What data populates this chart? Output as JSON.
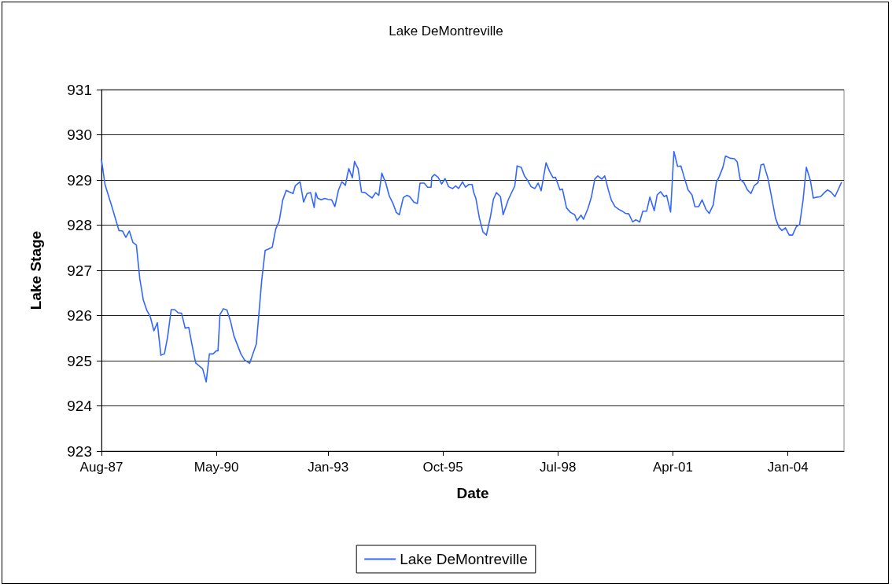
{
  "chart_data": {
    "type": "line",
    "title": "Lake DeMontreville",
    "xlabel": "Date",
    "ylabel": "Lake Stage",
    "x": [
      "1987-08",
      "1987-09",
      "1987-11",
      "1988-01",
      "1988-02",
      "1988-03",
      "1988-04",
      "1988-05",
      "1988-06",
      "1988-07",
      "1988-08",
      "1988-09",
      "1988-10",
      "1988-11",
      "1988-12",
      "1989-01",
      "1989-02",
      "1989-03",
      "1989-04",
      "1989-05",
      "1989-06",
      "1989-07",
      "1989-08",
      "1989-09",
      "1989-10",
      "1989-11",
      "1990-01",
      "1990-02",
      "1990-03",
      "1990-04",
      "1990-05",
      "1990-05-15",
      "1990-06",
      "1990-07",
      "1990-08",
      "1990-09",
      "1990-10",
      "1990-12",
      "1991-01",
      "1991-02-15",
      "1991-04-15",
      "1991-06",
      "1991-07",
      "1991-09",
      "1991-10",
      "1991-11",
      "1991-12",
      "1992-01",
      "1992-02",
      "1992-03",
      "1992-03-20",
      "1992-05",
      "1992-06",
      "1992-07",
      "1992-08",
      "1992-09",
      "1992-09-15",
      "1992-10",
      "1992-11",
      "1992-12",
      "1993-01",
      "1993-02",
      "1993-03",
      "1993-04",
      "1993-05",
      "1993-06",
      "1993-06-20",
      "1993-07",
      "1993-08",
      "1993-08-20",
      "1993-09",
      "1993-09-20",
      "1993-10-20",
      "1993-11-20",
      "1993-12-20",
      "1994-01-20",
      "1994-02-20",
      "1994-03-20",
      "1994-04-15",
      "1994-05-20",
      "1994-06-20",
      "1994-07-20",
      "1994-08-20",
      "1994-09-15",
      "1994-10-20",
      "1994-11-20",
      "1994-12-15",
      "1995-01-20",
      "1995-02-20",
      "1995-03-15",
      "1995-04-20",
      "1995-05-20",
      "1995-06-20",
      "1995-06-25",
      "1995-07-20",
      "1995-08-20",
      "1995-09-20",
      "1995-10-20",
      "1995-11-20",
      "1995-12-25",
      "1996-01-20",
      "1996-02-15",
      "1996-03-20",
      "1996-04-15",
      "1996-05-15",
      "1996-06-12",
      "1996-06-25",
      "1996-07-15",
      "1996-08-15",
      "1996-09-15",
      "1996-10-15",
      "1996-11-20",
      "1996-12-15",
      "1997-01-10",
      "1997-02-15",
      "1997-03-10",
      "1997-04-25",
      "1997-06-20",
      "1997-07-10",
      "1997-08-15",
      "1997-09-12",
      "1997-10-10",
      "1997-11-10",
      "1997-12-12",
      "1998-01-10",
      "1998-02-05",
      "1998-03-20",
      "1998-04-20",
      "1998-05-20",
      "1998-06-10",
      "1998-07-20",
      "1998-08-10",
      "1998-09-15",
      "1998-10-20",
      "1998-11-25",
      "1998-12-15",
      "1999-01-20",
      "1999-02-10",
      "1999-03-20",
      "1999-04-20",
      "1999-05-20",
      "1999-06-15",
      "1999-07-20",
      "1999-08-15",
      "1999-09-15",
      "1999-10-12",
      "1999-11-12",
      "1999-12-15",
      "2000-01-15",
      "2000-02-12",
      "2000-03-12",
      "2000-04-15",
      "2000-05-12",
      "2000-06-15",
      "2000-07-12",
      "2000-08-15",
      "2000-09-12",
      "2000-10-20",
      "2000-11-15",
      "2000-12-15",
      "2001-01-15",
      "2001-02-05",
      "2001-03-12",
      "2001-04-10",
      "2001-05-12",
      "2001-06-10",
      "2001-07-10",
      "2001-08-12",
      "2001-09-15",
      "2001-10-10",
      "2001-11-12",
      "2001-12-12",
      "2002-01-15",
      "2002-02-12",
      "2002-03-20",
      "2002-04-15",
      "2002-05-12",
      "2002-06-12",
      "2002-07-05",
      "2002-08-15",
      "2002-09-20",
      "2002-10-15",
      "2002-11-10",
      "2002-12-12",
      "2003-01-12",
      "2003-02-12",
      "2003-03-12",
      "2003-04-15",
      "2003-05-10",
      "2003-06-03",
      "2003-07-12",
      "2003-08-15",
      "2003-09-15",
      "2003-10-15",
      "2003-11-10",
      "2003-12-10",
      "2004-01-12",
      "2004-02-10",
      "2004-03-15",
      "2004-04-12",
      "2004-05-12",
      "2004-06-10",
      "2004-07-15",
      "2004-08-10",
      "2004-09-12",
      "2004-10-12",
      "2004-11-15",
      "2004-12-12",
      "2005-01-12",
      "2005-02-15",
      "2005-04-12"
    ],
    "series": [
      {
        "name": "Lake DeMontreville",
        "color": "#3366ff",
        "values": [
          929.45,
          928.9,
          928.4,
          927.88,
          927.87,
          927.73,
          927.87,
          927.62,
          927.56,
          926.81,
          926.34,
          926.11,
          925.97,
          925.66,
          925.84,
          925.12,
          925.15,
          925.53,
          926.13,
          926.13,
          926.06,
          926.05,
          925.72,
          925.74,
          925.34,
          924.95,
          924.82,
          924.53,
          925.15,
          925.15,
          925.22,
          925.22,
          926.02,
          926.15,
          926.12,
          925.88,
          925.55,
          925.15,
          925.02,
          924.94,
          925.37,
          926.78,
          927.44,
          927.51,
          927.91,
          928.09,
          928.55,
          928.77,
          928.73,
          928.7,
          928.87,
          928.96,
          928.51,
          928.7,
          928.72,
          928.39,
          928.72,
          928.6,
          928.56,
          928.59,
          928.57,
          928.56,
          928.41,
          928.77,
          928.96,
          928.88,
          929.13,
          929.25,
          929.05,
          929.41,
          929.34,
          929.25,
          928.73,
          928.72,
          928.66,
          928.6,
          928.72,
          928.66,
          929.15,
          928.93,
          928.64,
          928.49,
          928.28,
          928.23,
          928.61,
          928.66,
          928.63,
          928.51,
          928.48,
          928.93,
          928.93,
          928.84,
          928.84,
          929.06,
          929.12,
          929.06,
          928.91,
          929.03,
          928.85,
          928.81,
          928.87,
          928.81,
          928.96,
          928.84,
          928.9,
          928.9,
          928.73,
          928.59,
          928.15,
          927.85,
          927.78,
          928.2,
          928.57,
          928.72,
          928.63,
          928.23,
          928.57,
          928.87,
          929.31,
          929.28,
          929.09,
          928.99,
          928.85,
          928.81,
          928.93,
          928.76,
          929.38,
          929.19,
          929.05,
          929.06,
          928.78,
          928.8,
          928.38,
          928.28,
          928.23,
          928.1,
          928.22,
          928.13,
          928.36,
          928.62,
          929.02,
          929.09,
          929.02,
          929.09,
          928.78,
          928.55,
          928.41,
          928.35,
          928.31,
          928.26,
          928.25,
          928.07,
          928.12,
          928.07,
          928.31,
          928.31,
          928.62,
          928.32,
          928.67,
          928.74,
          928.63,
          928.66,
          928.29,
          929.63,
          929.3,
          929.31,
          929.05,
          928.78,
          928.67,
          928.41,
          928.41,
          928.56,
          928.35,
          928.26,
          928.45,
          928.94,
          929.08,
          929.28,
          929.53,
          929.48,
          929.47,
          929.4,
          929.01,
          928.94,
          928.78,
          928.7,
          928.87,
          928.94,
          929.33,
          929.35,
          929.02,
          928.57,
          928.15,
          927.95,
          927.88,
          927.94,
          927.78,
          927.78,
          927.97,
          928.01,
          928.55,
          929.28,
          928.99,
          928.6,
          928.62,
          928.63,
          928.72,
          928.78,
          928.73,
          928.63,
          928.94
        ]
      }
    ],
    "xlim": [
      "1987-08",
      "2005-05-05"
    ],
    "xticks": [
      {
        "value": "1987-08",
        "label": "Aug-87"
      },
      {
        "value": "1990-05",
        "label": "May-90"
      },
      {
        "value": "1993-01",
        "label": "Jan-93"
      },
      {
        "value": "1995-10",
        "label": "Oct-95"
      },
      {
        "value": "1998-07",
        "label": "Jul-98"
      },
      {
        "value": "2001-04",
        "label": "Apr-01"
      },
      {
        "value": "2004-01",
        "label": "Jan-04"
      }
    ],
    "ylim": [
      923,
      931
    ],
    "yticks": [
      923,
      924,
      925,
      926,
      927,
      928,
      929,
      930,
      931
    ],
    "grid": "y",
    "legend": "bottom",
    "marker": "none",
    "line_style": "solid"
  }
}
